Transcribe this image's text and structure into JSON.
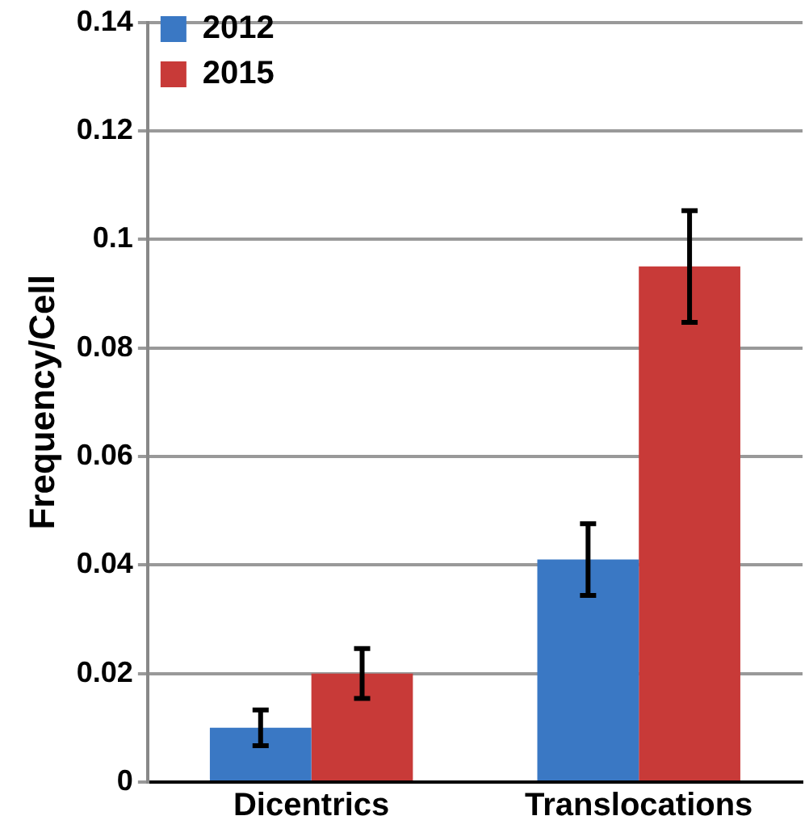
{
  "chart_data": {
    "type": "bar",
    "ylabel": "Frequency/Cell",
    "categories": [
      "Dicentrics",
      "Translocations"
    ],
    "series": [
      {
        "name": "2012",
        "color": "#3a78c4",
        "values": [
          0.01,
          0.041
        ],
        "errors": [
          0.0033,
          0.0066
        ]
      },
      {
        "name": "2015",
        "color": "#c83a38",
        "values": [
          0.02,
          0.095
        ],
        "errors": [
          0.0046,
          0.0103
        ]
      }
    ],
    "ylim": [
      0,
      0.14
    ],
    "yticks": [
      0,
      0.02,
      0.04,
      0.06,
      0.08,
      0.1,
      0.12,
      0.14
    ],
    "grid": "y",
    "legend": "top left"
  }
}
